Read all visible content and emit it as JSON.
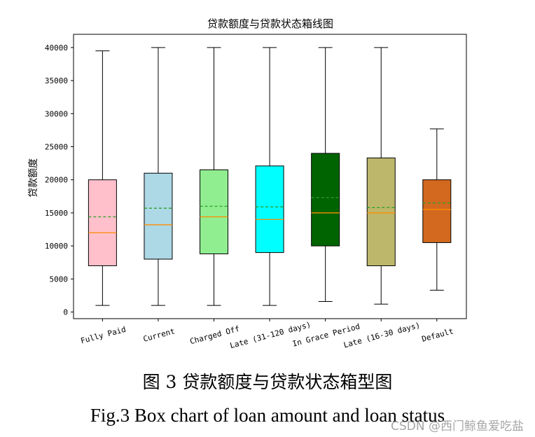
{
  "chart_data": {
    "type": "box",
    "title": "贷款额度与贷款状态箱线图",
    "xlabel": "",
    "ylabel": "贷款额度",
    "ylim": [
      -1000,
      42000
    ],
    "yticks": [
      0,
      5000,
      10000,
      15000,
      20000,
      25000,
      30000,
      35000,
      40000
    ],
    "grid": false,
    "legend": "none",
    "categories": [
      "Fully Paid",
      "Current",
      "Charged Off",
      "Late (31-120 days)",
      "In Grace Period",
      "Late (16-30 days)",
      "Default"
    ],
    "boxes": [
      {
        "category": "Fully Paid",
        "whisker_low": 1000,
        "q1": 7000,
        "median": 12000,
        "mean": 14400,
        "q3": 20000,
        "whisker_high": 39500,
        "color": "#ffc0cb"
      },
      {
        "category": "Current",
        "whisker_low": 1000,
        "q1": 8000,
        "median": 13200,
        "mean": 15700,
        "q3": 21000,
        "whisker_high": 40000,
        "color": "#add8e6"
      },
      {
        "category": "Charged Off",
        "whisker_low": 1000,
        "q1": 8800,
        "median": 14400,
        "mean": 16000,
        "q3": 21500,
        "whisker_high": 40000,
        "color": "#90ee90"
      },
      {
        "category": "Late (31-120 days)",
        "whisker_low": 1000,
        "q1": 9000,
        "median": 14000,
        "mean": 15900,
        "q3": 22100,
        "whisker_high": 40000,
        "color": "#00ffff"
      },
      {
        "category": "In Grace Period",
        "whisker_low": 1600,
        "q1": 10000,
        "median": 15000,
        "mean": 17300,
        "q3": 24000,
        "whisker_high": 40000,
        "color": "#006400"
      },
      {
        "category": "Late (16-30 days)",
        "whisker_low": 1200,
        "q1": 7000,
        "median": 15000,
        "mean": 15800,
        "q3": 23300,
        "whisker_high": 40000,
        "color": "#bdb76b"
      },
      {
        "category": "Default",
        "whisker_low": 3300,
        "q1": 10500,
        "median": 15500,
        "mean": 16500,
        "q3": 20000,
        "whisker_high": 27700,
        "color": "#d2691e"
      }
    ],
    "median_color": "#ff8c00",
    "mean_color": "#2ca02c"
  },
  "captions": {
    "chinese": "图 3 贷款额度与贷款状态箱型图",
    "english": "Fig.3 Box chart of loan amount and loan status"
  },
  "watermark": "CSDN @西门鲸鱼爱吃盐"
}
